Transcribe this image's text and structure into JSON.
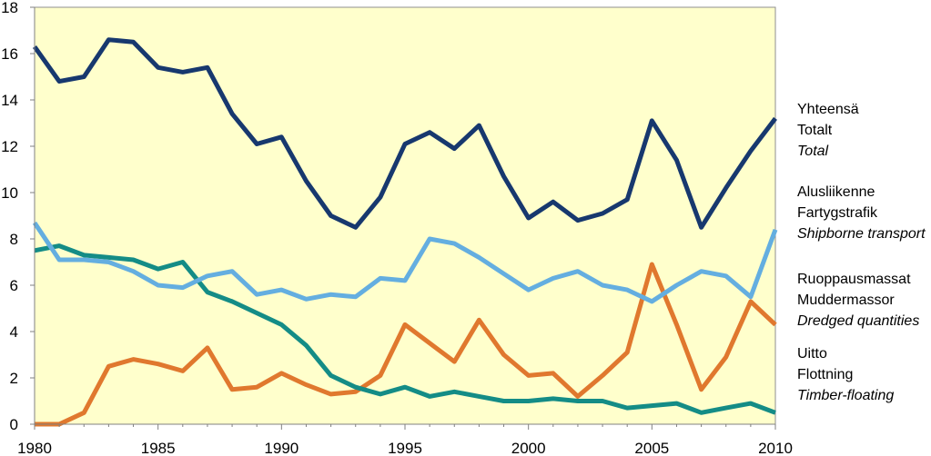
{
  "chart_data": {
    "type": "line",
    "x": [
      1980,
      1981,
      1982,
      1983,
      1984,
      1985,
      1986,
      1987,
      1988,
      1989,
      1990,
      1991,
      1992,
      1993,
      1994,
      1995,
      1996,
      1997,
      1998,
      1999,
      2000,
      2001,
      2002,
      2003,
      2004,
      2005,
      2006,
      2007,
      2008,
      2009,
      2010
    ],
    "ylim": [
      0,
      18
    ],
    "xlim": [
      1980,
      2010
    ],
    "yticks": [
      0,
      2,
      4,
      6,
      8,
      10,
      12,
      14,
      16,
      18
    ],
    "xticks": [
      1980,
      1985,
      1990,
      1995,
      2000,
      2005,
      2010
    ],
    "grid": false,
    "background": "#ffffcc",
    "legend_position": "right",
    "series": [
      {
        "key": "total",
        "color": "#17386e",
        "name": [
          "Yhteensä",
          "Totalt",
          "Total"
        ],
        "values": [
          16.3,
          14.8,
          15.0,
          16.6,
          16.5,
          15.4,
          15.2,
          15.4,
          13.4,
          12.1,
          12.4,
          10.5,
          9.0,
          8.5,
          9.8,
          12.1,
          12.6,
          11.9,
          12.9,
          10.7,
          8.9,
          9.6,
          8.8,
          9.1,
          9.7,
          13.1,
          11.4,
          8.5,
          10.2,
          11.8,
          13.2
        ]
      },
      {
        "key": "shipborne",
        "color": "#64aee0",
        "name": [
          "Alusliikenne",
          "Fartygstrafik",
          "Shipborne transport"
        ],
        "values": [
          8.7,
          7.1,
          7.1,
          7.0,
          6.6,
          6.0,
          5.9,
          6.4,
          6.6,
          5.6,
          5.8,
          5.4,
          5.6,
          5.5,
          6.3,
          6.2,
          8.0,
          7.8,
          7.2,
          6.5,
          5.8,
          6.3,
          6.6,
          6.0,
          5.8,
          5.3,
          6.0,
          6.6,
          6.4,
          5.5,
          8.4
        ]
      },
      {
        "key": "dredged",
        "color": "#e0782e",
        "name": [
          "Ruoppausmassat",
          "Muddermassor",
          "Dredged quantities"
        ],
        "values": [
          0.0,
          0.0,
          0.5,
          2.5,
          2.8,
          2.6,
          2.3,
          3.3,
          1.5,
          1.6,
          2.2,
          1.7,
          1.3,
          1.4,
          2.1,
          4.3,
          3.5,
          2.7,
          4.5,
          3.0,
          2.1,
          2.2,
          1.2,
          2.1,
          3.1,
          6.9,
          4.3,
          1.5,
          2.9,
          5.3,
          4.3
        ]
      },
      {
        "key": "floating",
        "color": "#148c86",
        "name": [
          "Uitto",
          "Flottning",
          "Timber-floating"
        ],
        "values": [
          7.5,
          7.7,
          7.3,
          7.2,
          7.1,
          6.7,
          7.0,
          5.7,
          5.3,
          4.8,
          4.3,
          3.4,
          2.1,
          1.6,
          1.3,
          1.6,
          1.2,
          1.4,
          1.2,
          1.0,
          1.0,
          1.1,
          1.0,
          1.0,
          0.7,
          0.8,
          0.9,
          0.5,
          0.7,
          0.9,
          0.5
        ]
      }
    ]
  }
}
